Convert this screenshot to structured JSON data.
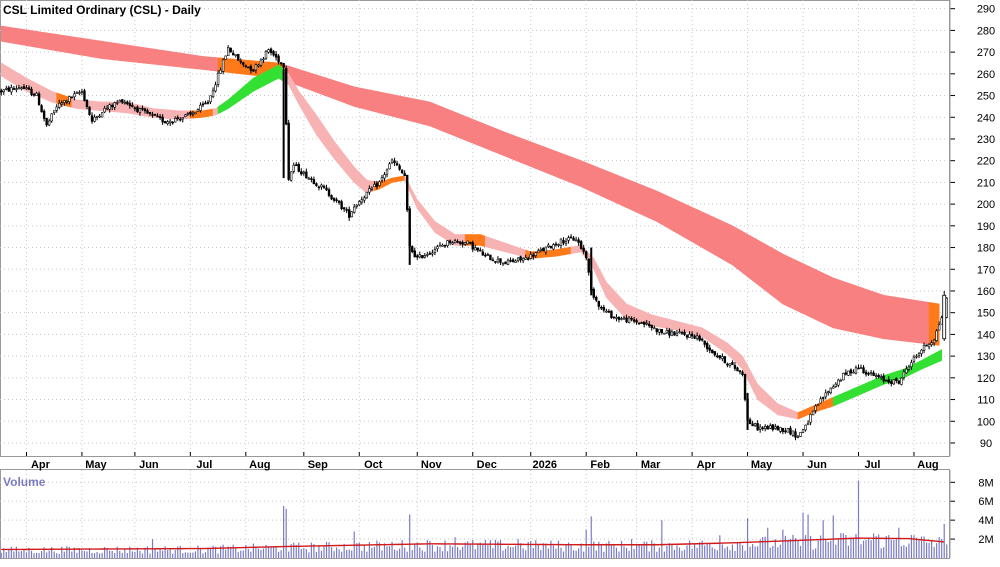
{
  "chart_data": {
    "type": "candlestick",
    "title": "CSL Limited Ordinary (CSL) - Daily",
    "price_axis": {
      "ticks": [
        90,
        100,
        110,
        120,
        130,
        140,
        150,
        160,
        170,
        180,
        190,
        200,
        210,
        220,
        230,
        240,
        250,
        260,
        270,
        280,
        290
      ],
      "range": [
        84,
        294
      ]
    },
    "volume_axis": {
      "label": "Volume",
      "ticks": [
        "2M",
        "4M",
        "6M",
        "8M"
      ],
      "tick_values": [
        2,
        4,
        6,
        8
      ],
      "range": [
        0,
        9.3
      ]
    },
    "months": [
      "Apr",
      "May",
      "Jun",
      "Jul",
      "Aug",
      "Sep",
      "Oct",
      "Nov",
      "Dec",
      "2026",
      "Feb",
      "Mar",
      "Apr",
      "May",
      "Jun",
      "Jul",
      "Aug"
    ],
    "month_day_index": [
      10,
      32,
      53,
      75,
      97,
      120,
      142,
      165,
      187,
      210,
      232,
      252,
      274,
      296,
      318,
      340,
      362
    ],
    "total_days": 375,
    "price_path": [
      [
        0,
        252
      ],
      [
        8,
        254
      ],
      [
        14,
        250
      ],
      [
        18,
        236
      ],
      [
        22,
        245
      ],
      [
        26,
        248
      ],
      [
        32,
        252
      ],
      [
        36,
        238
      ],
      [
        40,
        243
      ],
      [
        48,
        248
      ],
      [
        55,
        243
      ],
      [
        65,
        238
      ],
      [
        75,
        241
      ],
      [
        82,
        247
      ],
      [
        85,
        256
      ],
      [
        90,
        272
      ],
      [
        95,
        265
      ],
      [
        100,
        262
      ],
      [
        106,
        271
      ],
      [
        112,
        264
      ],
      [
        114,
        212
      ],
      [
        116,
        218
      ],
      [
        120,
        214
      ],
      [
        128,
        207
      ],
      [
        134,
        200
      ],
      [
        138,
        195
      ],
      [
        140,
        199
      ],
      [
        145,
        205
      ],
      [
        150,
        210
      ],
      [
        155,
        220
      ],
      [
        160,
        213
      ],
      [
        162,
        180
      ],
      [
        165,
        175
      ],
      [
        170,
        178
      ],
      [
        178,
        183
      ],
      [
        185,
        182
      ],
      [
        192,
        176
      ],
      [
        200,
        173
      ],
      [
        208,
        175
      ],
      [
        215,
        179
      ],
      [
        222,
        183
      ],
      [
        228,
        184
      ],
      [
        232,
        176
      ],
      [
        234,
        160
      ],
      [
        238,
        152
      ],
      [
        243,
        148
      ],
      [
        255,
        145
      ],
      [
        262,
        141
      ],
      [
        270,
        140
      ],
      [
        276,
        139
      ],
      [
        282,
        132
      ],
      [
        288,
        127
      ],
      [
        294,
        122
      ],
      [
        296,
        100
      ],
      [
        300,
        97
      ],
      [
        306,
        97
      ],
      [
        312,
        96
      ],
      [
        316,
        93
      ],
      [
        320,
        100
      ],
      [
        324,
        108
      ],
      [
        328,
        114
      ],
      [
        334,
        121
      ],
      [
        340,
        125
      ],
      [
        344,
        122
      ],
      [
        350,
        119
      ],
      [
        356,
        118
      ],
      [
        360,
        126
      ],
      [
        365,
        133
      ],
      [
        370,
        138
      ],
      [
        373,
        148
      ],
      [
        374,
        157
      ]
    ],
    "last_candle": {
      "day": 374,
      "open": 138,
      "high": 160,
      "low": 137,
      "close": 158
    },
    "ribbons": [
      {
        "label": "long-term ribbon",
        "color": "#f98080",
        "upper": [
          [
            0,
            282
          ],
          [
            40,
            275
          ],
          [
            80,
            268
          ],
          [
            110,
            265
          ],
          [
            140,
            254
          ],
          [
            170,
            247
          ],
          [
            200,
            233
          ],
          [
            230,
            220
          ],
          [
            260,
            206
          ],
          [
            290,
            190
          ],
          [
            310,
            177
          ],
          [
            330,
            166
          ],
          [
            350,
            158
          ],
          [
            372,
            154
          ]
        ],
        "lower": [
          [
            0,
            275
          ],
          [
            40,
            267
          ],
          [
            80,
            262
          ],
          [
            110,
            258
          ],
          [
            140,
            245
          ],
          [
            170,
            236
          ],
          [
            200,
            222
          ],
          [
            230,
            208
          ],
          [
            260,
            192
          ],
          [
            290,
            172
          ],
          [
            310,
            154
          ],
          [
            330,
            143
          ],
          [
            350,
            138
          ],
          [
            372,
            135
          ]
        ],
        "color_segments": [
          {
            "from_day": 86,
            "to_day": 112,
            "color": "#ff7a1a"
          },
          {
            "from_day": 368,
            "to_day": 374,
            "color": "#ff7a1a"
          }
        ]
      },
      {
        "label": "short-term ribbon",
        "color": "#f7b3b3",
        "upper": [
          [
            0,
            265
          ],
          [
            10,
            258
          ],
          [
            20,
            252
          ],
          [
            30,
            248
          ],
          [
            40,
            247
          ],
          [
            50,
            247
          ],
          [
            60,
            244
          ],
          [
            70,
            243
          ],
          [
            80,
            243
          ],
          [
            85,
            244
          ],
          [
            90,
            248
          ],
          [
            100,
            258
          ],
          [
            110,
            264
          ],
          [
            114,
            260
          ],
          [
            118,
            252
          ],
          [
            125,
            241
          ],
          [
            132,
            229
          ],
          [
            140,
            217
          ],
          [
            145,
            211
          ],
          [
            150,
            210
          ],
          [
            155,
            212
          ],
          [
            160,
            213
          ],
          [
            165,
            202
          ],
          [
            172,
            192
          ],
          [
            180,
            186
          ],
          [
            190,
            186
          ],
          [
            200,
            182
          ],
          [
            210,
            178
          ],
          [
            220,
            179
          ],
          [
            230,
            181
          ],
          [
            235,
            175
          ],
          [
            240,
            164
          ],
          [
            248,
            154
          ],
          [
            258,
            149
          ],
          [
            268,
            146
          ],
          [
            278,
            143
          ],
          [
            288,
            136
          ],
          [
            294,
            130
          ],
          [
            300,
            117
          ],
          [
            308,
            108
          ],
          [
            316,
            104
          ],
          [
            322,
            107
          ],
          [
            330,
            111
          ],
          [
            340,
            116
          ],
          [
            350,
            121
          ],
          [
            358,
            124
          ],
          [
            365,
            128
          ],
          [
            373,
            133
          ]
        ],
        "lower": [
          [
            0,
            259
          ],
          [
            10,
            252
          ],
          [
            20,
            247
          ],
          [
            30,
            244
          ],
          [
            40,
            243
          ],
          [
            50,
            242
          ],
          [
            60,
            240
          ],
          [
            70,
            239
          ],
          [
            80,
            240
          ],
          [
            85,
            241
          ],
          [
            90,
            244
          ],
          [
            100,
            252
          ],
          [
            110,
            258
          ],
          [
            114,
            255
          ],
          [
            118,
            246
          ],
          [
            125,
            232
          ],
          [
            132,
            221
          ],
          [
            140,
            210
          ],
          [
            145,
            205
          ],
          [
            150,
            207
          ],
          [
            155,
            210
          ],
          [
            160,
            211
          ],
          [
            165,
            198
          ],
          [
            172,
            187
          ],
          [
            180,
            181
          ],
          [
            190,
            181
          ],
          [
            200,
            178
          ],
          [
            210,
            175
          ],
          [
            220,
            176
          ],
          [
            230,
            178
          ],
          [
            235,
            170
          ],
          [
            240,
            157
          ],
          [
            248,
            147
          ],
          [
            258,
            144
          ],
          [
            268,
            142
          ],
          [
            278,
            139
          ],
          [
            288,
            131
          ],
          [
            294,
            124
          ],
          [
            300,
            110
          ],
          [
            308,
            103
          ],
          [
            316,
            101
          ],
          [
            322,
            104
          ],
          [
            330,
            107
          ],
          [
            340,
            112
          ],
          [
            350,
            117
          ],
          [
            358,
            120
          ],
          [
            365,
            124
          ],
          [
            373,
            128
          ]
        ],
        "color_segments": [
          {
            "from_day": 22,
            "to_day": 28,
            "color": "#ff7a1a"
          },
          {
            "from_day": 75,
            "to_day": 84,
            "color": "#ff7a1a"
          },
          {
            "from_day": 86,
            "to_day": 112,
            "color": "#33e033"
          },
          {
            "from_day": 148,
            "to_day": 160,
            "color": "#ff7a1a"
          },
          {
            "from_day": 184,
            "to_day": 192,
            "color": "#ff7a1a"
          },
          {
            "from_day": 208,
            "to_day": 226,
            "color": "#ff7a1a"
          },
          {
            "from_day": 316,
            "to_day": 330,
            "color": "#ff7a1a"
          },
          {
            "from_day": 330,
            "to_day": 374,
            "color": "#33e033"
          }
        ]
      }
    ],
    "volume_spikes": [
      [
        112,
        5.5
      ],
      [
        113,
        5.2
      ],
      [
        162,
        4.6
      ],
      [
        234,
        4.4
      ],
      [
        296,
        4.2
      ],
      [
        262,
        4.0
      ],
      [
        304,
        3.2
      ],
      [
        318,
        4.8
      ],
      [
        320,
        4.6
      ],
      [
        326,
        4.0
      ],
      [
        330,
        4.5
      ],
      [
        340,
        8.2
      ],
      [
        356,
        3.2
      ],
      [
        374,
        3.6
      ],
      [
        232,
        3.0
      ],
      [
        140,
        2.8
      ],
      [
        60,
        2.0
      ],
      [
        180,
        2.2
      ],
      [
        205,
        2.0
      ],
      [
        210,
        1.8
      ],
      [
        250,
        2.0
      ],
      [
        285,
        2.4
      ],
      [
        310,
        3.0
      ],
      [
        346,
        2.6
      ],
      [
        362,
        2.4
      ]
    ],
    "volume_avg": [
      [
        0,
        0.9
      ],
      [
        40,
        0.95
      ],
      [
        80,
        1.0
      ],
      [
        110,
        1.2
      ],
      [
        140,
        1.35
      ],
      [
        170,
        1.5
      ],
      [
        200,
        1.45
      ],
      [
        230,
        1.4
      ],
      [
        260,
        1.4
      ],
      [
        290,
        1.6
      ],
      [
        320,
        1.9
      ],
      [
        340,
        2.1
      ],
      [
        360,
        2.05
      ],
      [
        374,
        1.7
      ]
    ],
    "colors": {
      "grid": "#c8c8c8",
      "candle": "#000000",
      "volume": "#7b7bc4",
      "volume_avg": "#d11a1a",
      "axis_text": "#000000",
      "volume_label": "#7b7bc4"
    }
  }
}
